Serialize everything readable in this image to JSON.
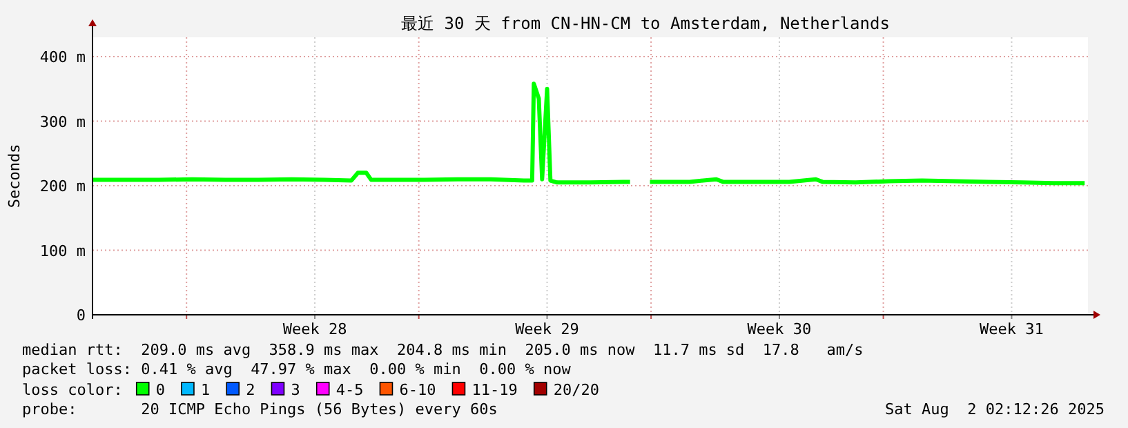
{
  "chart_data": {
    "type": "line",
    "title": "最近 30 天 from CN-HN-CM to Amsterdam, Netherlands",
    "ylabel": "Seconds",
    "x": [
      "2025-07-03",
      "2025-07-04",
      "2025-07-05",
      "2025-07-06",
      "2025-07-07",
      "2025-07-08",
      "2025-07-09",
      "2025-07-10",
      "2025-07-10T19:12",
      "2025-07-11",
      "2025-07-11T06:00",
      "2025-07-11T09:36",
      "2025-07-12",
      "2025-07-13",
      "2025-07-14",
      "2025-07-15",
      "2025-07-16",
      "2025-07-16T06:00",
      "2025-07-16T07:12",
      "2025-07-16T10:48",
      "2025-07-16T13:12",
      "2025-07-16T16:48",
      "2025-07-16T19:12",
      "2025-07-17",
      "2025-07-18",
      "2025-07-19",
      "2025-07-19T04:48",
      "2025-07-19T07:12",
      "2025-07-19T19:12",
      "2025-07-20",
      "2025-07-21",
      "2025-07-21T19:12",
      "2025-07-22",
      "2025-07-23",
      "2025-07-24",
      "2025-07-24T19:12",
      "2025-07-25",
      "2025-07-26",
      "2025-07-27",
      "2025-07-28",
      "2025-07-29",
      "2025-07-30",
      "2025-07-31",
      "2025-08-01",
      "2025-08-01T21:36"
    ],
    "series": [
      {
        "name": "0",
        "color": "#00ff00",
        "values": [
          209,
          209,
          209,
          210,
          209,
          209,
          210,
          209,
          208,
          220,
          220,
          209,
          209,
          209,
          210,
          210,
          208,
          208,
          358,
          335,
          210,
          350,
          208,
          205,
          205,
          206,
          206,
          null,
          206,
          206,
          206,
          210,
          206,
          206,
          206,
          210,
          206,
          205,
          207,
          208,
          207,
          206,
          205,
          204,
          204
        ]
      },
      {
        "name": "1",
        "color": "#00b8ff",
        "values": [
          null,
          null,
          null,
          null,
          null,
          null,
          null,
          null,
          null,
          null,
          null,
          null,
          null,
          null,
          null,
          null,
          null,
          null,
          null,
          null,
          null,
          null,
          null,
          null,
          null,
          null,
          null,
          null,
          null,
          null,
          null,
          null,
          null,
          null,
          null,
          null,
          null,
          null,
          null,
          null,
          null,
          null,
          null,
          null,
          null
        ]
      },
      {
        "name": "2",
        "color": "#0059ff",
        "values": [
          null,
          null,
          null,
          null,
          null,
          null,
          null,
          null,
          null,
          null,
          null,
          null,
          null,
          null,
          null,
          null,
          null,
          null,
          null,
          null,
          null,
          null,
          null,
          null,
          null,
          null,
          null,
          null,
          null,
          null,
          null,
          null,
          null,
          null,
          null,
          null,
          null,
          null,
          null,
          null,
          null,
          null,
          null,
          null,
          null
        ]
      },
      {
        "name": "3",
        "color": "#7e00ff",
        "values": [
          null,
          null,
          null,
          null,
          null,
          null,
          null,
          null,
          null,
          null,
          null,
          null,
          null,
          null,
          null,
          null,
          null,
          null,
          null,
          null,
          null,
          null,
          null,
          null,
          null,
          null,
          null,
          null,
          null,
          null,
          null,
          null,
          null,
          null,
          null,
          null,
          null,
          null,
          null,
          null,
          null,
          null,
          null,
          null,
          null
        ]
      },
      {
        "name": "4-5",
        "color": "#ff00ff",
        "values": [
          null,
          null,
          null,
          null,
          null,
          null,
          null,
          null,
          null,
          null,
          null,
          null,
          null,
          null,
          null,
          null,
          null,
          null,
          null,
          null,
          null,
          null,
          null,
          null,
          null,
          null,
          null,
          null,
          null,
          null,
          null,
          null,
          null,
          null,
          null,
          null,
          null,
          null,
          null,
          null,
          null,
          null,
          null,
          null,
          null
        ]
      },
      {
        "name": "6-10",
        "color": "#ff5500",
        "values": [
          null,
          null,
          null,
          null,
          null,
          null,
          null,
          null,
          null,
          null,
          null,
          null,
          null,
          null,
          null,
          null,
          null,
          null,
          null,
          null,
          null,
          null,
          null,
          null,
          null,
          null,
          null,
          null,
          null,
          null,
          null,
          null,
          null,
          null,
          null,
          null,
          null,
          null,
          null,
          null,
          null,
          null,
          null,
          null,
          null
        ]
      },
      {
        "name": "11-19",
        "color": "#ff0000",
        "values": [
          null,
          null,
          null,
          null,
          null,
          null,
          null,
          null,
          null,
          null,
          null,
          null,
          null,
          null,
          null,
          null,
          null,
          null,
          null,
          null,
          null,
          null,
          null,
          null,
          null,
          null,
          null,
          null,
          null,
          null,
          null,
          null,
          null,
          null,
          null,
          null,
          null,
          null,
          null,
          null,
          null,
          null,
          null,
          null,
          null
        ]
      },
      {
        "name": "20/20",
        "color": "#a10000",
        "values": [
          null,
          null,
          null,
          null,
          null,
          null,
          null,
          null,
          null,
          null,
          null,
          null,
          null,
          null,
          null,
          null,
          null,
          null,
          null,
          null,
          null,
          null,
          null,
          null,
          null,
          null,
          null,
          null,
          null,
          null,
          null,
          null,
          null,
          null,
          null,
          null,
          null,
          null,
          null,
          null,
          null,
          null,
          null,
          null,
          null
        ]
      }
    ],
    "xlim": [
      "2025-07-03",
      "2025-08-02"
    ],
    "xticks": [
      {
        "value": "2025-07-05T20:00",
        "label": null
      },
      {
        "value": "2025-07-09T16:48",
        "label": "Week 28"
      },
      {
        "value": "2025-07-12T20:00",
        "label": null
      },
      {
        "value": "2025-07-16T16:48",
        "label": "Week 29"
      },
      {
        "value": "2025-07-19T20:00",
        "label": null
      },
      {
        "value": "2025-07-23T16:48",
        "label": "Week 30"
      },
      {
        "value": "2025-07-26T20:00",
        "label": null
      },
      {
        "value": "2025-07-30T16:48",
        "label": "Week 31"
      }
    ],
    "ylim": [
      0,
      430
    ],
    "yticks": [
      0,
      {
        "value": 100,
        "label": "100 m"
      },
      {
        "value": 200,
        "label": "200 m"
      },
      {
        "value": 300,
        "label": "300 m"
      },
      {
        "value": 400,
        "label": "400 m"
      }
    ],
    "grid": true,
    "legend": "bottom left",
    "legend_title": "loss color:",
    "annotations": [
      "median rtt:  209.0 ms avg  358.9 ms max  204.8 ms min  205.0 ms now  11.7 ms sd  17.8   am/s",
      "packet loss: 0.41 % avg  47.97 % max  0.00 % min  0.00 % now",
      "probe:       20 ICMP Echo Pings (56 Bytes) every 60s",
      "Sat Aug  2 02:12:26 2025"
    ]
  }
}
